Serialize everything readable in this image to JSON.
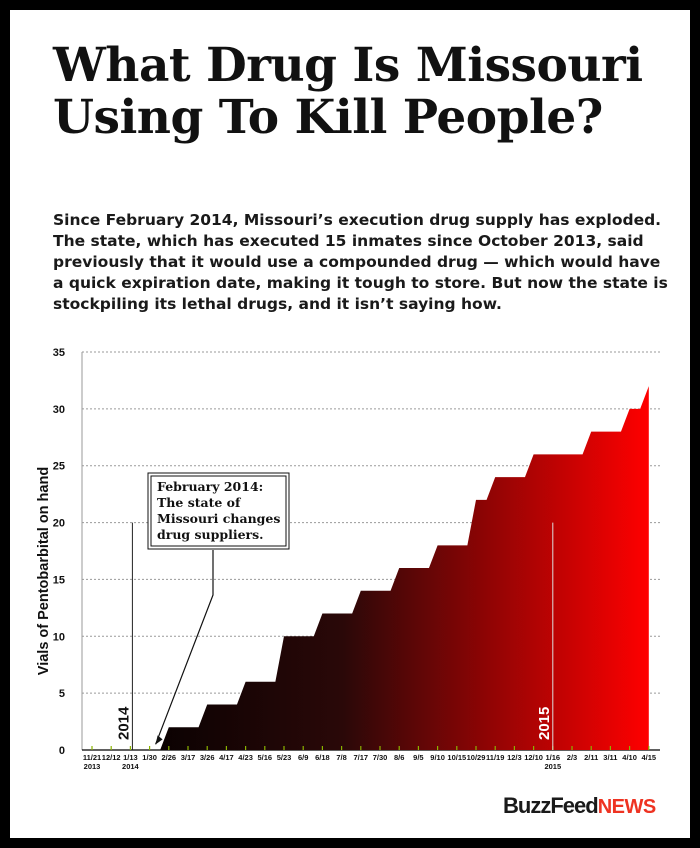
{
  "title": "What Drug Is Missouri Using To Kill People?",
  "intro": "Since February 2014, Missouri’s execution drug supply has exploded. The state, which has executed 15 inmates since October 2013, said previously that it would use a compounded drug — which would have a quick expiration date, making it tough to store. But now the state is stockpiling its lethal drugs, and it isn’t saying how.",
  "brand": {
    "main": "BuzzFeed",
    "accent": "NEWS"
  },
  "colors": {
    "gradient_start": "#000000",
    "gradient_end": "#ff0000",
    "grid": "#9a9a9a",
    "text": "#111111",
    "tick_mark": "#8ab300"
  },
  "chart_data": {
    "type": "area",
    "ylabel": "Vials of Pentobarbital on hand",
    "xlabel": "",
    "ylim": [
      0,
      35
    ],
    "yticks": [
      0,
      5,
      10,
      15,
      20,
      25,
      30,
      35
    ],
    "grid": true,
    "x": [
      "11/21 2013",
      "12/12",
      "1/13 2014",
      "1/30",
      "2/26",
      "3/17",
      "3/26",
      "4/17",
      "4/23",
      "5/16",
      "5/23",
      "6/9",
      "6/18",
      "7/8",
      "7/17",
      "7/30",
      "8/6",
      "9/5",
      "9/10",
      "10/15",
      "10/29",
      "11/19",
      "12/3",
      "12/10",
      "1/16 2015",
      "2/3",
      "2/11",
      "3/11",
      "4/10",
      "4/15"
    ],
    "values": [
      0,
      0,
      0,
      0,
      2,
      2,
      4,
      4,
      6,
      6,
      10,
      10,
      12,
      12,
      14,
      14,
      16,
      16,
      18,
      18,
      22,
      24,
      24,
      26,
      26,
      26,
      28,
      28,
      30,
      32
    ],
    "year_markers": [
      {
        "label": "2014",
        "x": "1/13 2014"
      },
      {
        "label": "2015",
        "x": "1/16 2015"
      }
    ],
    "annotations": [
      {
        "text": "February 2014: The state of Missouri changes drug suppliers.",
        "x": "1/30"
      }
    ]
  }
}
